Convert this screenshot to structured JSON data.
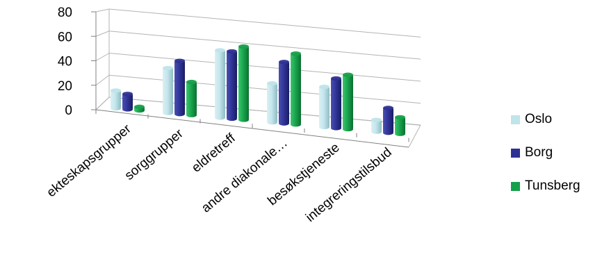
{
  "chart_data": {
    "type": "bar",
    "title": "",
    "xlabel": "",
    "ylabel": "",
    "ylim": [
      0,
      80
    ],
    "yticks": [
      "0",
      "20",
      "40",
      "60",
      "80"
    ],
    "grid": true,
    "legend_position": "right",
    "categories": [
      "ekteskapsgrupper",
      "sorggrupper",
      "eldretreff",
      "andre diakonale…",
      "besøkstjeneste",
      "integreringstilsbud"
    ],
    "series": [
      {
        "name": "Oslo",
        "color": "#bfe4ea",
        "values": [
          15,
          38,
          57,
          33,
          34,
          10
        ]
      },
      {
        "name": "Borg",
        "color": "#2e3192",
        "values": [
          13,
          45,
          57,
          52,
          42,
          21
        ]
      },
      {
        "name": "Tunsberg",
        "color": "#15a04a",
        "values": [
          3,
          28,
          62,
          60,
          46,
          14
        ]
      }
    ]
  }
}
